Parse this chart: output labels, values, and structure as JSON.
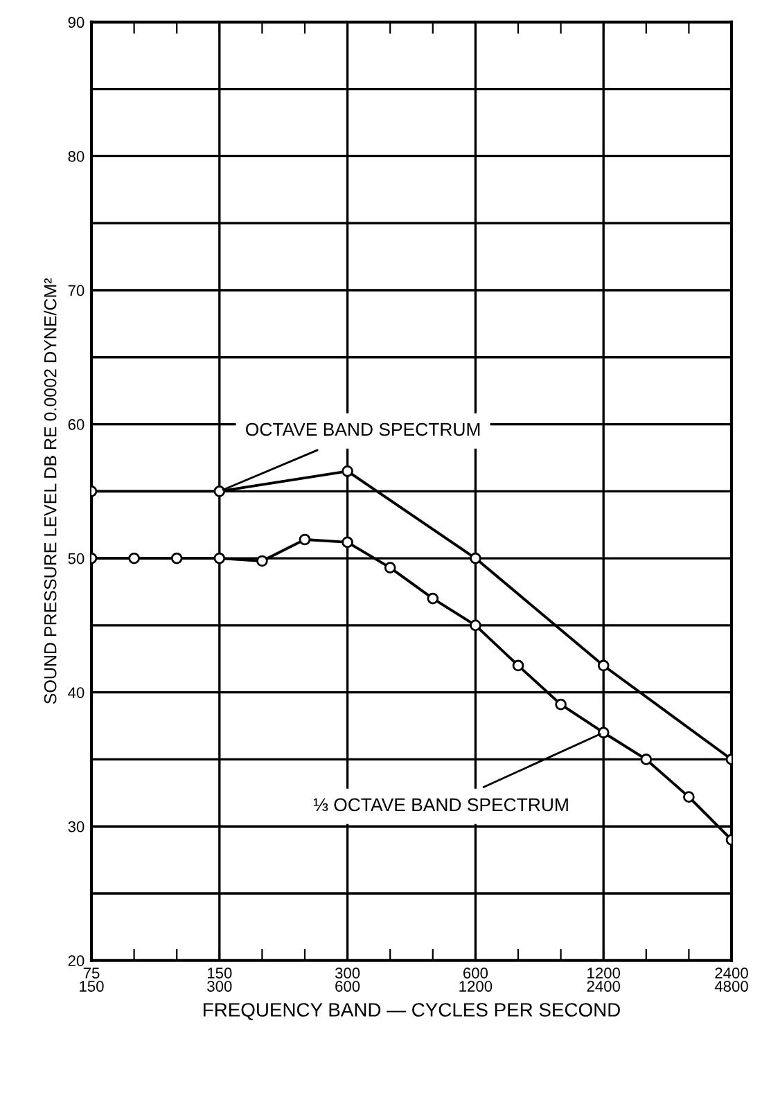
{
  "chart_data": {
    "type": "line",
    "xlabel": "FREQUENCY BAND — CYCLES PER SECOND",
    "ylabel": "SOUND PRESSURE LEVEL DB RE 0.0002 DYNE/CM²",
    "categories": [
      "75\n150",
      null,
      null,
      "150\n300",
      null,
      null,
      "300\n600",
      null,
      null,
      "600\n1200",
      null,
      null,
      "1200\n2400",
      null,
      null,
      "2400\n4800"
    ],
    "ylim": [
      20,
      90
    ],
    "yticks": [
      20,
      {
        "value": 25,
        "label": null
      },
      30,
      {
        "value": 35,
        "label": null
      },
      40,
      {
        "value": 45,
        "label": null
      },
      50,
      {
        "value": 55,
        "label": null
      },
      60,
      {
        "value": 65,
        "label": null
      },
      70,
      {
        "value": 75,
        "label": null
      },
      80,
      {
        "value": 85,
        "label": null
      },
      90
    ],
    "grid": true,
    "marker": "circle",
    "line_style": "solid",
    "series": [
      {
        "color": "#000000",
        "values": [
          55,
          null,
          null,
          55,
          null,
          null,
          56.5,
          null,
          null,
          50,
          null,
          null,
          42,
          null,
          null,
          35
        ]
      },
      {
        "color": "#000000",
        "values": [
          50,
          50,
          50,
          50,
          49.8,
          51.4,
          51.2,
          49.3,
          47,
          45,
          42,
          39.1,
          37,
          35,
          32.2,
          29
        ]
      }
    ],
    "annotations": [
      {
        "text": "OCTAVE BAND SPECTRUM",
        "x": "150\n300",
        "y": 55
      },
      {
        "text": "⅓ OCTAVE BAND SPECTRUM",
        "x": "1200\n2400",
        "y": 37
      }
    ]
  }
}
